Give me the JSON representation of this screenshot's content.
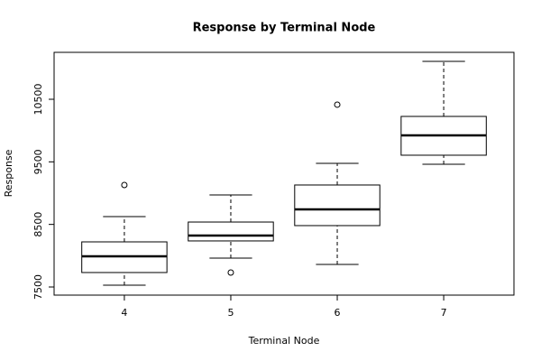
{
  "chart_data": {
    "type": "box",
    "title": "Response by Terminal Node",
    "x_label": "Terminal Node",
    "y_label": "Response",
    "categories": [
      "4",
      "5",
      "6",
      "7"
    ],
    "boxes": [
      {
        "min": 7529,
        "q1": 7731,
        "median": 7990,
        "q3": 8221,
        "max": 8625,
        "outliers": [
          9130
        ]
      },
      {
        "min": 7962,
        "q1": 8236,
        "median": 8322,
        "q3": 8538,
        "max": 8971,
        "outliers": [
          7731
        ]
      },
      {
        "min": 7861,
        "q1": 8481,
        "median": 8740,
        "q3": 9130,
        "max": 9476,
        "outliers": [
          10414
        ]
      },
      {
        "min": 9462,
        "q1": 9606,
        "median": 9923,
        "q3": 10226,
        "max": 11106,
        "outliers": []
      }
    ],
    "color": "#000000",
    "ylim": [
      7370,
      11250
    ],
    "yticks": [
      7500,
      8500,
      9500,
      10500
    ]
  }
}
